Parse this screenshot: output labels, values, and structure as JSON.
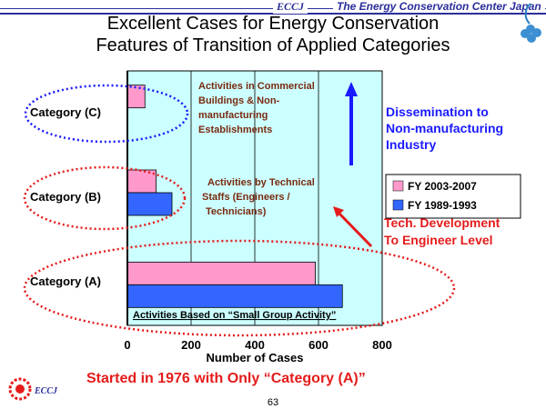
{
  "header": {
    "brand": "ECCJ",
    "organization": "The Energy Conservation Center Japan"
  },
  "title_lines": [
    "Excellent Cases for Energy Conservation",
    "Features of Transition of Applied Categories"
  ],
  "chart_data": {
    "type": "bar",
    "orientation": "horizontal",
    "categories": [
      "Category (A)",
      "Category (B)",
      "Category (C)"
    ],
    "series": [
      {
        "name": "FY 2003-2007",
        "color": "#ff99cc",
        "values": [
          590,
          90,
          55
        ]
      },
      {
        "name": "FY 1989-1993",
        "color": "#3366ff",
        "values": [
          675,
          140,
          0
        ]
      }
    ],
    "xlabel": "Number of Cases",
    "xlim": [
      0,
      800
    ],
    "xticks": [
      "0",
      "200",
      "400",
      "600",
      "800"
    ],
    "grid": true,
    "legend_position": "right",
    "annotations": {
      "category_c": "Activities in Commercial Buildings & Non-manufacturing Establishments",
      "category_b": "Activities by Technical Staffs (Engineers / Technicians)",
      "category_a": "Activities Based on “Small Group Activity”",
      "arrow_blue": "Dissemination to Non-manufacturing Industry",
      "arrow_red": "Tech. Development To Engineer Level"
    }
  },
  "footer": {
    "note": "Started in 1976 with Only “Category (A)”",
    "brand": "ECCJ",
    "page_number": "63"
  },
  "colors": {
    "plot_background": "#ccffff",
    "brand_blue": "#2b2e9a",
    "accent_red": "#e51b1b",
    "arrow_blue": "#1a1aff",
    "annotation_brown": "#7a2a10"
  }
}
